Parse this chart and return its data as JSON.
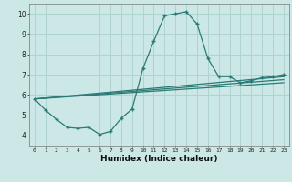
{
  "xlabel": "Humidex (Indice chaleur)",
  "bg_color": "#cce8e6",
  "line_color": "#2a7a75",
  "grid_color": "#afd4d0",
  "xlim": [
    -0.5,
    23.5
  ],
  "ylim": [
    3.5,
    10.5
  ],
  "xticks": [
    0,
    1,
    2,
    3,
    4,
    5,
    6,
    7,
    8,
    9,
    10,
    11,
    12,
    13,
    14,
    15,
    16,
    17,
    18,
    19,
    20,
    21,
    22,
    23
  ],
  "yticks": [
    4,
    5,
    6,
    7,
    8,
    9,
    10
  ],
  "line1_x": [
    0,
    1,
    2,
    3,
    4,
    5,
    6,
    7,
    8,
    9,
    10,
    11,
    12,
    13,
    14,
    15,
    16,
    17,
    18,
    19,
    20,
    21,
    22,
    23
  ],
  "line1_y": [
    5.8,
    5.25,
    4.8,
    4.4,
    4.35,
    4.4,
    4.05,
    4.2,
    4.85,
    5.3,
    7.3,
    8.65,
    9.9,
    10.0,
    10.1,
    9.5,
    7.8,
    6.9,
    6.9,
    6.6,
    6.7,
    6.85,
    6.9,
    7.0
  ],
  "line2_x": [
    0,
    23
  ],
  "line2_y": [
    5.8,
    6.6
  ],
  "line3_x": [
    0,
    23
  ],
  "line3_y": [
    5.8,
    6.75
  ],
  "line4_x": [
    0,
    23
  ],
  "line4_y": [
    5.8,
    6.9
  ]
}
